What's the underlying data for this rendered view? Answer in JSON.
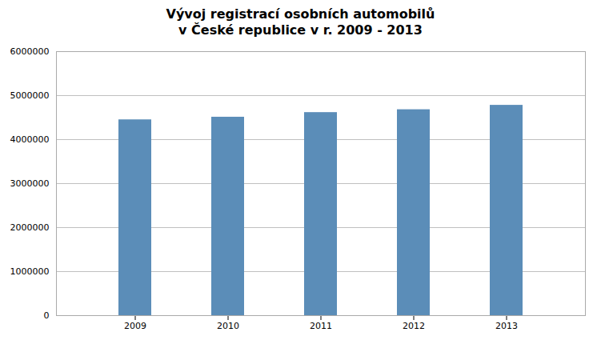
{
  "chart_data": {
    "type": "bar",
    "title": "Vývoj registrací osobních automobilů\nv České republice v r. 2009 - 2013",
    "categories": [
      "2009",
      "2010",
      "2011",
      "2012",
      "2013"
    ],
    "values": [
      4450000,
      4510000,
      4615000,
      4680000,
      4780000
    ],
    "color": "#5b8db8",
    "ylim": [
      0,
      6000000
    ],
    "yticks": [
      0,
      1000000,
      2000000,
      3000000,
      4000000,
      5000000,
      6000000
    ],
    "grid": true
  }
}
